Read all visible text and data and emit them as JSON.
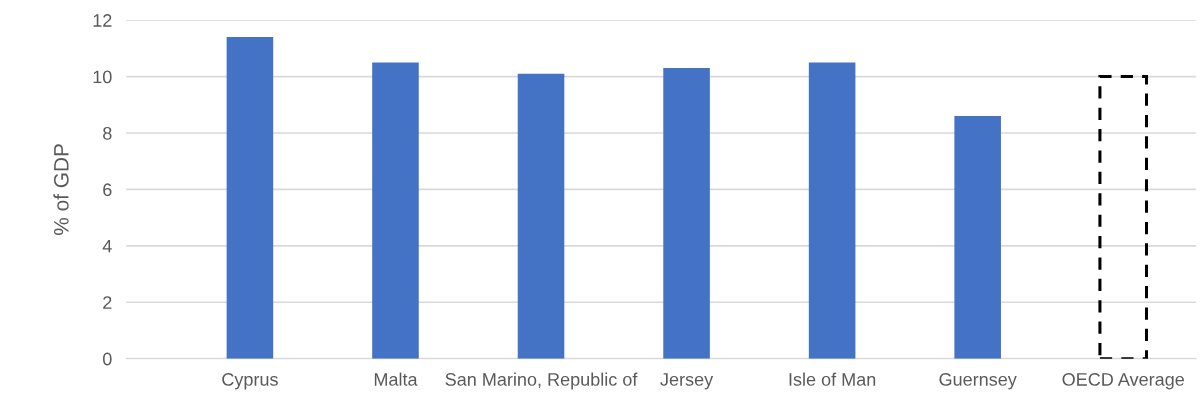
{
  "chart_data": {
    "type": "bar",
    "ylabel": "% of GDP",
    "categories": [
      "Cyprus",
      "Malta",
      "San Marino, Republic of",
      "Jersey",
      "Isle of Man",
      "Guernsey",
      "OECD Average"
    ],
    "series": [
      {
        "color": "#4472c4",
        "values": [
          11.4,
          10.5,
          10.1,
          10.3,
          10.5,
          8.6,
          null
        ]
      },
      {
        "color": "#000000",
        "line_style": "dashed",
        "values": [
          null,
          null,
          null,
          null,
          null,
          null,
          10.0
        ]
      }
    ],
    "ylim": [
      0,
      12
    ],
    "yticks": [
      0,
      2,
      4,
      6,
      8,
      10,
      12
    ],
    "grid": "y"
  }
}
